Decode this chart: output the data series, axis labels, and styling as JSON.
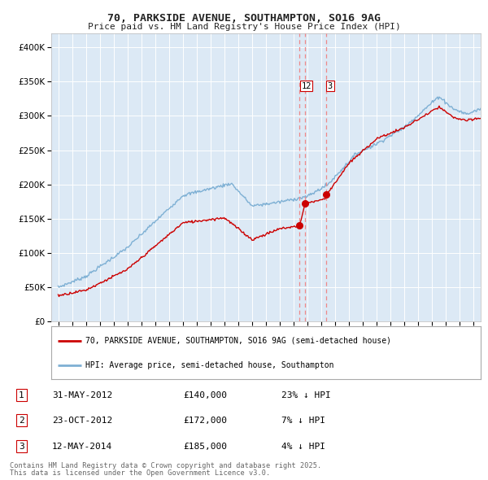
{
  "title": "70, PARKSIDE AVENUE, SOUTHAMPTON, SO16 9AG",
  "subtitle": "Price paid vs. HM Land Registry's House Price Index (HPI)",
  "fig_bg_color": "#ffffff",
  "plot_bg_color": "#dce9f5",
  "red_line_color": "#cc0000",
  "blue_line_color": "#7eb0d4",
  "grid_color": "#ffffff",
  "vline_color": "#ee8888",
  "marker_color": "#cc0000",
  "transactions": [
    {
      "num": 1,
      "date_str": "31-MAY-2012",
      "date_x": 2012.417,
      "price": 140000,
      "note": "23% ↓ HPI"
    },
    {
      "num": 2,
      "date_str": "23-OCT-2012",
      "date_x": 2012.81,
      "price": 172000,
      "note": "7% ↓ HPI"
    },
    {
      "num": 3,
      "date_str": "12-MAY-2014",
      "date_x": 2014.36,
      "price": 185000,
      "note": "4% ↓ HPI"
    }
  ],
  "legend_red": "70, PARKSIDE AVENUE, SOUTHAMPTON, SO16 9AG (semi-detached house)",
  "legend_blue": "HPI: Average price, semi-detached house, Southampton",
  "footer_line1": "Contains HM Land Registry data © Crown copyright and database right 2025.",
  "footer_line2": "This data is licensed under the Open Government Licence v3.0.",
  "ylim": [
    0,
    420000
  ],
  "xlim": [
    1994.5,
    2025.5
  ],
  "yticks": [
    0,
    50000,
    100000,
    150000,
    200000,
    250000,
    300000,
    350000,
    400000
  ]
}
